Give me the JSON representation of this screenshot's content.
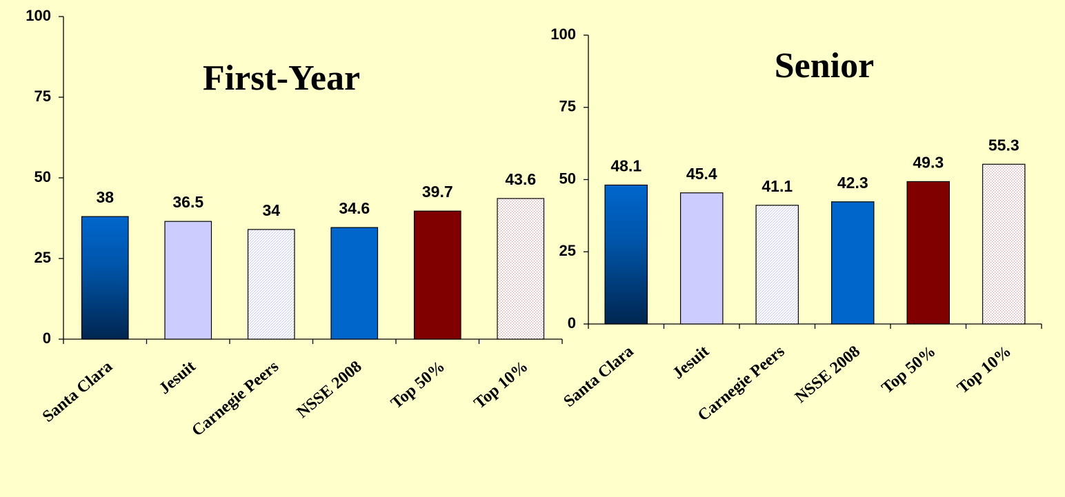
{
  "chart_data": [
    {
      "type": "bar",
      "title": "First-Year",
      "categories": [
        "Santa Clara",
        "Jesuit",
        "Carnegie Peers",
        "NSSE 2008",
        "Top 50%",
        "Top 10%"
      ],
      "values": [
        38,
        36.5,
        34,
        34.6,
        39.7,
        43.6
      ],
      "colors": [
        "#0066cc",
        "#ccccff",
        "#ccccee",
        "#0066cc",
        "#800000",
        "#cc9999"
      ],
      "patterns": [
        "gradient",
        "solid",
        "hatch",
        "solid",
        "solid",
        "dots"
      ],
      "ylim": [
        0,
        100
      ],
      "yticks": [
        0,
        25,
        50,
        75,
        100
      ]
    },
    {
      "type": "bar",
      "title": "Senior",
      "categories": [
        "Santa Clara",
        "Jesuit",
        "Carnegie Peers",
        "NSSE 2008",
        "Top 50%",
        "Top 10%"
      ],
      "values": [
        48.1,
        45.4,
        41.1,
        42.3,
        49.3,
        55.3
      ],
      "colors": [
        "#0066cc",
        "#ccccff",
        "#ccccee",
        "#0066cc",
        "#800000",
        "#cc9999"
      ],
      "patterns": [
        "gradient",
        "solid",
        "hatch",
        "solid",
        "solid",
        "dots"
      ],
      "ylim": [
        0,
        100
      ],
      "yticks": [
        0,
        25,
        50,
        75,
        100
      ]
    }
  ]
}
